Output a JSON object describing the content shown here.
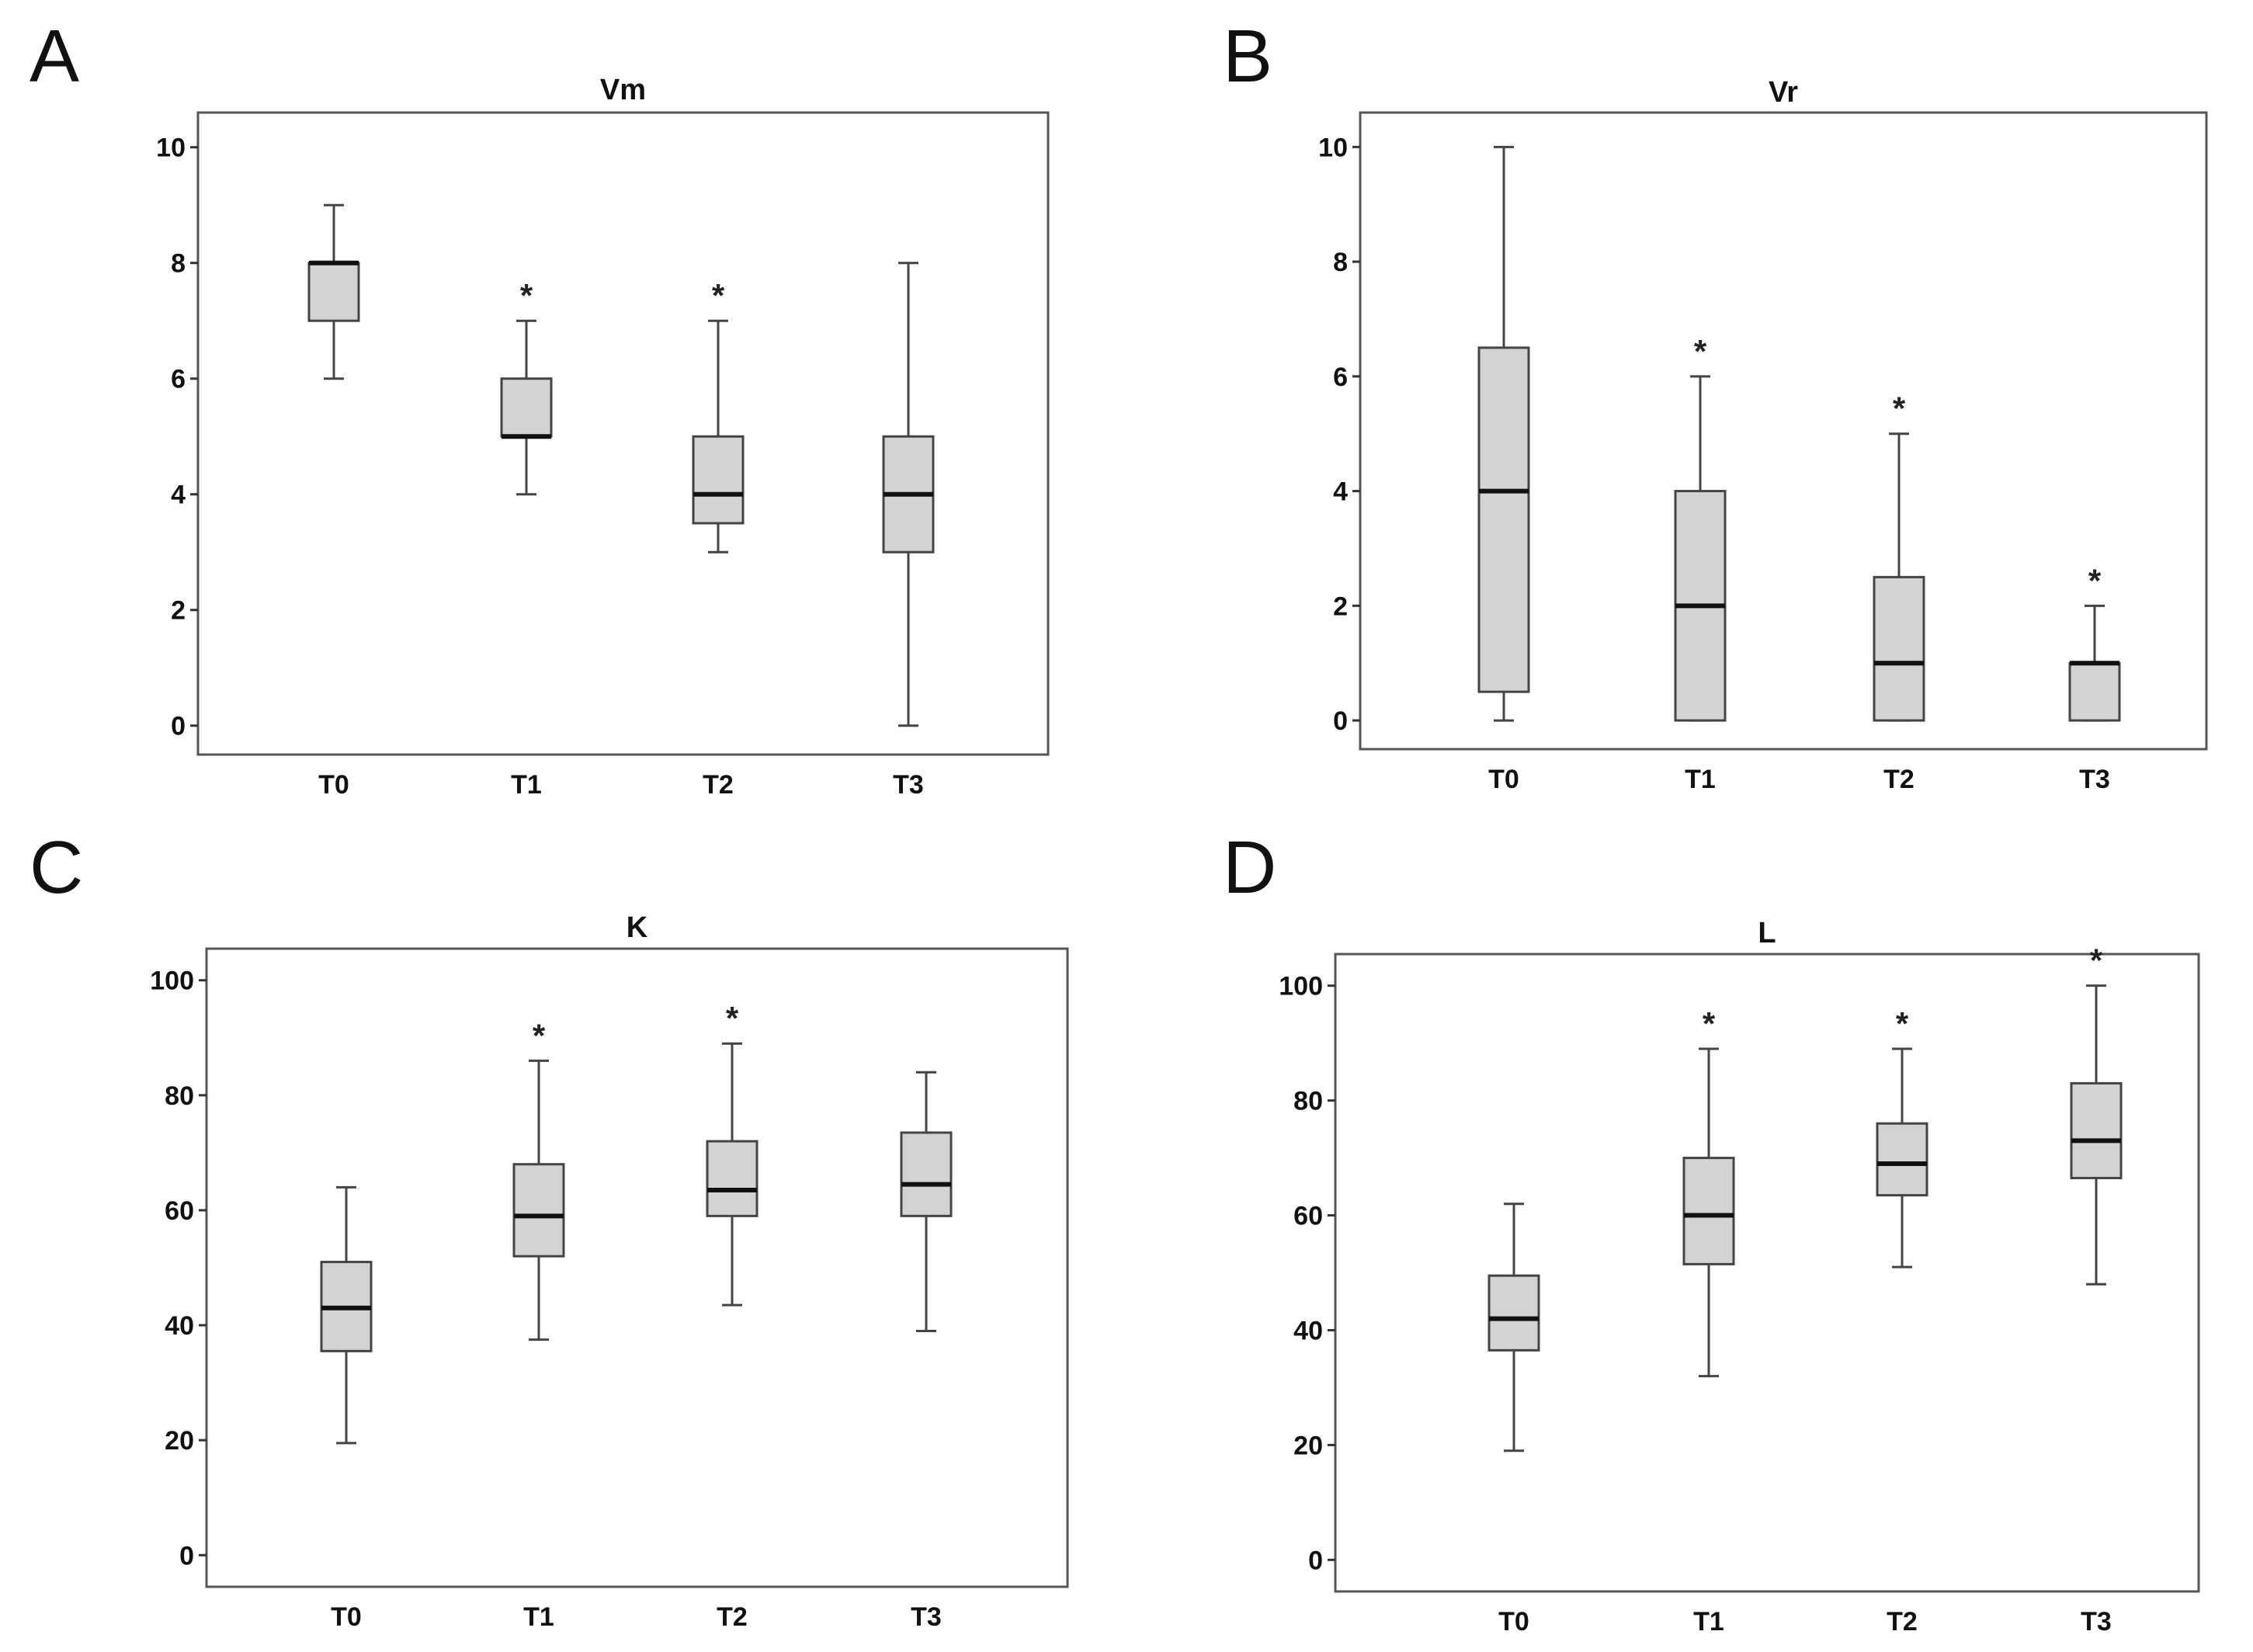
{
  "figure": {
    "colors": {
      "box_fill": "#d3d3d3",
      "box_stroke": "#444444",
      "median": "#111111",
      "frame": "#555555",
      "text": "#111111"
    }
  },
  "chart_data": [
    {
      "panel": "A",
      "type": "boxplot",
      "title": "Vm",
      "xlabel": "",
      "ylabel": "",
      "categories": [
        "T0",
        "T1",
        "T2",
        "T3"
      ],
      "ylim": [
        -0.5,
        10.6
      ],
      "yticks": [
        "0",
        "2",
        "4",
        "6",
        "8",
        "10"
      ],
      "grid": false,
      "boxes": [
        {
          "category": "T0",
          "min": 6,
          "q1": 7,
          "median": 8,
          "q3": 8,
          "max": 9,
          "sig": ""
        },
        {
          "category": "T1",
          "min": 4,
          "q1": 5,
          "median": 5,
          "q3": 6,
          "max": 7,
          "sig": "*"
        },
        {
          "category": "T2",
          "min": 3,
          "q1": 3.5,
          "median": 4,
          "q3": 5,
          "max": 7,
          "sig": "*"
        },
        {
          "category": "T3",
          "min": 0,
          "q1": 3,
          "median": 4,
          "q3": 5,
          "max": 8,
          "sig": ""
        }
      ]
    },
    {
      "panel": "B",
      "type": "boxplot",
      "title": "Vr",
      "xlabel": "",
      "ylabel": "",
      "categories": [
        "T0",
        "T1",
        "T2",
        "T3"
      ],
      "ylim": [
        -0.5,
        10.6
      ],
      "yticks": [
        "0",
        "2",
        "4",
        "6",
        "8",
        "10"
      ],
      "grid": false,
      "boxes": [
        {
          "category": "T0",
          "min": 0,
          "q1": 0.5,
          "median": 4,
          "q3": 6.5,
          "max": 10,
          "sig": ""
        },
        {
          "category": "T1",
          "min": 0,
          "q1": 0,
          "median": 2,
          "q3": 4,
          "max": 6,
          "sig": "*"
        },
        {
          "category": "T2",
          "min": 0,
          "q1": 0,
          "median": 1,
          "q3": 2.5,
          "max": 5,
          "sig": "*"
        },
        {
          "category": "T3",
          "min": 0,
          "q1": 0,
          "median": 1,
          "q3": 1,
          "max": 2,
          "sig": "*"
        }
      ]
    },
    {
      "panel": "C",
      "type": "boxplot",
      "title": "K",
      "xlabel": "",
      "ylabel": "",
      "categories": [
        "T0",
        "T1",
        "T2",
        "T3"
      ],
      "ylim": [
        -5.5,
        105.5
      ],
      "yticks": [
        "0",
        "20",
        "40",
        "60",
        "80",
        "100"
      ],
      "grid": false,
      "boxes": [
        {
          "category": "T0",
          "min": 19.5,
          "q1": 35.5,
          "median": 43,
          "q3": 51,
          "max": 64,
          "sig": ""
        },
        {
          "category": "T1",
          "min": 37.5,
          "q1": 52,
          "median": 59,
          "q3": 68,
          "max": 86,
          "sig": "*"
        },
        {
          "category": "T2",
          "min": 43.5,
          "q1": 59,
          "median": 63.5,
          "q3": 72,
          "max": 89,
          "sig": "*"
        },
        {
          "category": "T3",
          "min": 39,
          "q1": 59,
          "median": 64.5,
          "q3": 73.5,
          "max": 84,
          "sig": ""
        }
      ]
    },
    {
      "panel": "D",
      "type": "boxplot",
      "title": "L",
      "xlabel": "",
      "ylabel": "",
      "categories": [
        "T0",
        "T1",
        "T2",
        "T3"
      ],
      "ylim": [
        -5.5,
        105.5
      ],
      "yticks": [
        "0",
        "20",
        "40",
        "60",
        "80",
        "100"
      ],
      "grid": false,
      "boxes": [
        {
          "category": "T0",
          "min": 19,
          "q1": 36.5,
          "median": 42,
          "q3": 49.5,
          "max": 62,
          "sig": ""
        },
        {
          "category": "T1",
          "min": 32,
          "q1": 51.5,
          "median": 60,
          "q3": 70,
          "max": 89,
          "sig": "*"
        },
        {
          "category": "T2",
          "min": 51,
          "q1": 63.5,
          "median": 69,
          "q3": 76,
          "max": 89,
          "sig": "*"
        },
        {
          "category": "T3",
          "min": 48,
          "q1": 66.5,
          "median": 73,
          "q3": 83,
          "max": 100,
          "sig": "*"
        }
      ]
    }
  ]
}
